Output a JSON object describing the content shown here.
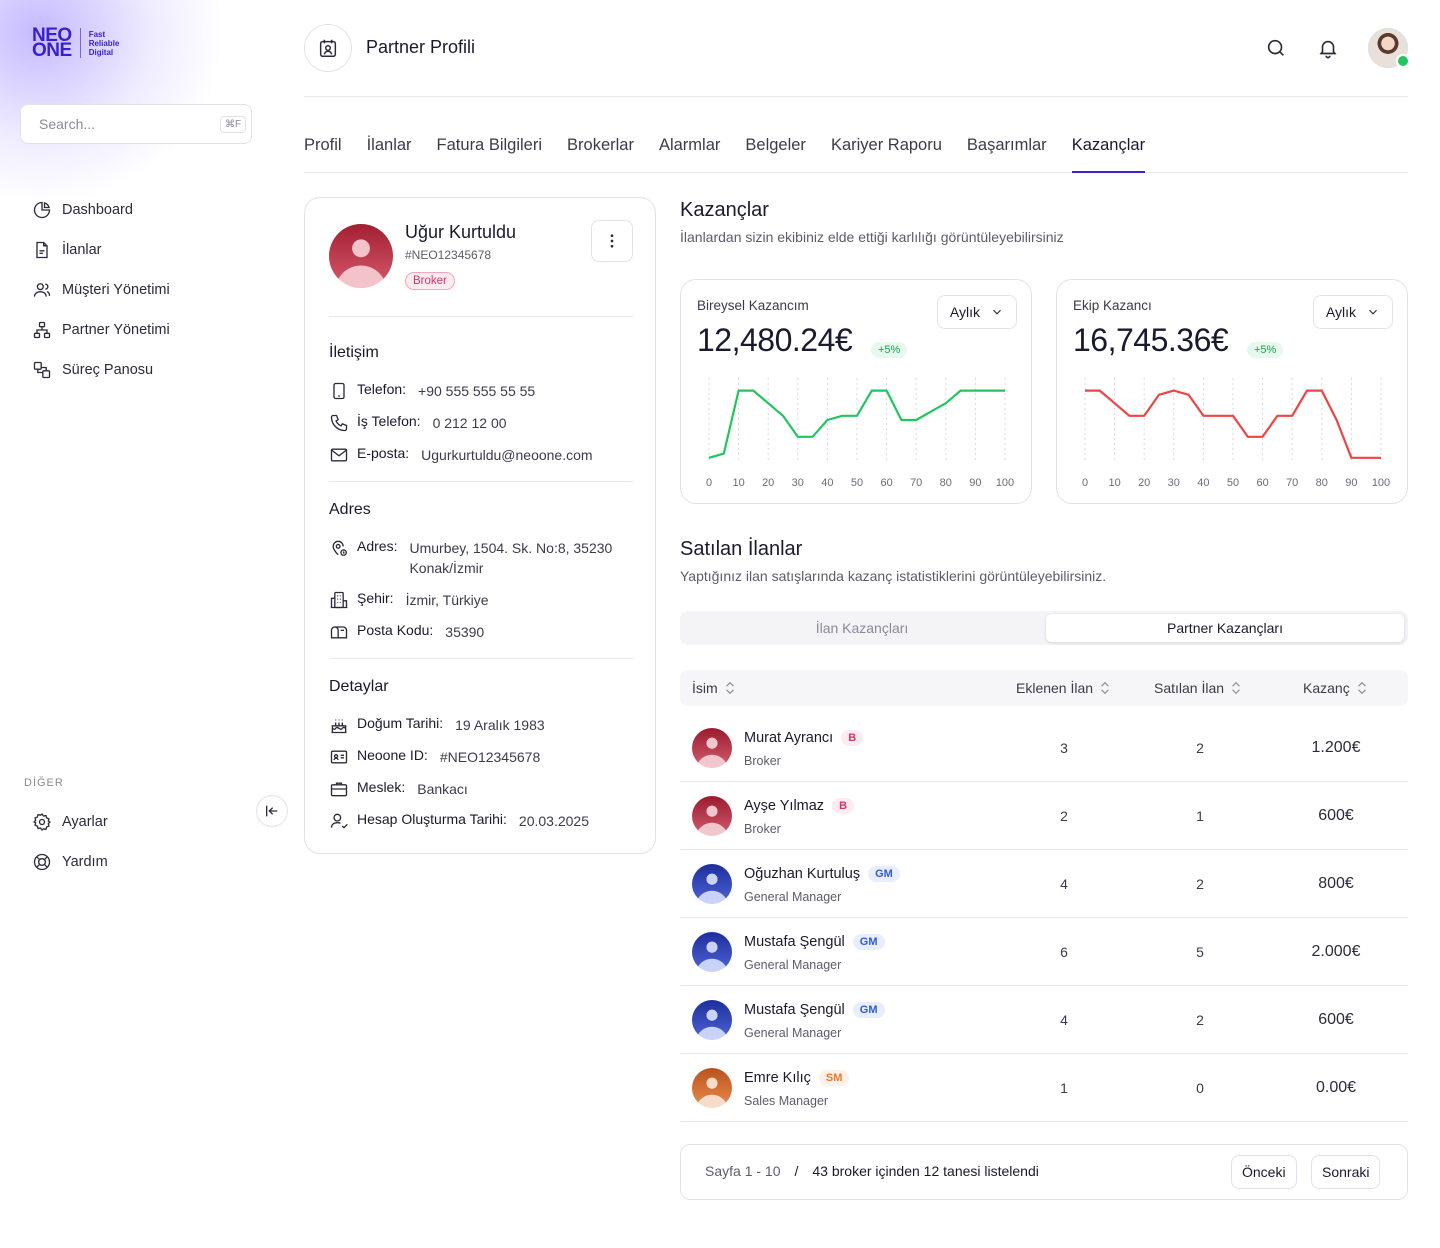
{
  "brand": {
    "logo_main_1": "NEO",
    "logo_main_2": "ONE",
    "tagline_1": "Fast",
    "tagline_2": "Reliable",
    "tagline_3": "Digital",
    "accent": "#3a1fd1"
  },
  "search": {
    "placeholder": "Search...",
    "shortcut": "⌘F"
  },
  "sidebar": {
    "items": [
      {
        "label": "Dashboard",
        "icon": "pie-chart-icon"
      },
      {
        "label": "İlanlar",
        "icon": "document-icon"
      },
      {
        "label": "Müşteri Yönetimi",
        "icon": "users-icon"
      },
      {
        "label": "Partner Yönetimi",
        "icon": "hierarchy-icon"
      },
      {
        "label": "Süreç Panosu",
        "icon": "process-icon"
      }
    ],
    "other_label": "DİĞER",
    "other_items": [
      {
        "label": "Ayarlar",
        "icon": "gear-icon"
      },
      {
        "label": "Yardım",
        "icon": "lifebuoy-icon"
      }
    ]
  },
  "header": {
    "title": "Partner Profili"
  },
  "tabs": [
    {
      "label": "Profil"
    },
    {
      "label": "İlanlar"
    },
    {
      "label": "Fatura Bilgileri"
    },
    {
      "label": "Brokerlar"
    },
    {
      "label": "Alarmlar"
    },
    {
      "label": "Belgeler"
    },
    {
      "label": "Kariyer Raporu"
    },
    {
      "label": "Başarımlar"
    },
    {
      "label": "Kazançlar",
      "active": true
    }
  ],
  "profile": {
    "name": "Uğur Kurtuldu",
    "id": "#NEO12345678",
    "badge": "Broker",
    "contact_title": "İletişim",
    "phone_label": "Telefon:",
    "phone": "+90 555 555 55 55",
    "work_phone_label": "İş Telefon:",
    "work_phone": "0 212 12 00",
    "email_label": "E-posta:",
    "email": "Ugurkurtuldu@neoone.com",
    "address_title": "Adres",
    "address_label": "Adres:",
    "address_line1": "Umurbey, 1504. Sk. No:8, 35230",
    "address_line2": "Konak/İzmir",
    "city_label": "Şehir:",
    "city": "İzmir, Türkiye",
    "postal_label": "Posta Kodu:",
    "postal": "35390",
    "details_title": "Detaylar",
    "birth_label": "Doğum Tarihi:",
    "birth": "19 Aralık 1983",
    "neoone_label": "Neoone ID:",
    "neoone_id": "#NEO12345678",
    "job_label": "Meslek:",
    "job": "Bankacı",
    "created_label": "Hesap Oluşturma Tarihi:",
    "created": "20.03.2025"
  },
  "earnings": {
    "title": "Kazançlar",
    "subtitle": "İlanlardan sizin ekibiniz elde ettiği karlılığı görüntüleyebilirsiniz",
    "cards": [
      {
        "label": "Bireysel Kazancım",
        "value": "12,480.24€",
        "delta": "+5%",
        "period": "Aylık",
        "color": "#22c55e"
      },
      {
        "label": "Ekip Kazancı",
        "value": "16,745.36€",
        "delta": "+5%",
        "period": "Aylık",
        "color": "#ef4444"
      }
    ]
  },
  "chart_data": [
    {
      "type": "line",
      "x": [
        0,
        5,
        10,
        15,
        20,
        25,
        30,
        35,
        40,
        45,
        50,
        55,
        60,
        65,
        70,
        75,
        80,
        85,
        90,
        95,
        100
      ],
      "values": [
        0.05,
        0.1,
        0.85,
        0.85,
        0.7,
        0.55,
        0.3,
        0.3,
        0.5,
        0.55,
        0.55,
        0.85,
        0.85,
        0.5,
        0.5,
        0.6,
        0.7,
        0.85,
        0.85,
        0.85,
        0.85
      ],
      "x_ticks": [
        0,
        10,
        20,
        30,
        40,
        50,
        60,
        70,
        80,
        90,
        100
      ],
      "color": "#22c55e"
    },
    {
      "type": "line",
      "x": [
        0,
        5,
        10,
        15,
        20,
        25,
        30,
        35,
        40,
        45,
        50,
        55,
        60,
        65,
        70,
        75,
        80,
        85,
        90,
        95,
        100
      ],
      "values": [
        0.85,
        0.85,
        0.7,
        0.55,
        0.55,
        0.8,
        0.85,
        0.8,
        0.55,
        0.55,
        0.55,
        0.3,
        0.3,
        0.55,
        0.55,
        0.85,
        0.85,
        0.5,
        0.05,
        0.05,
        0.05
      ],
      "x_ticks": [
        0,
        10,
        20,
        30,
        40,
        50,
        60,
        70,
        80,
        90,
        100
      ],
      "color": "#ef4444"
    }
  ],
  "sold": {
    "title": "Satılan İlanlar",
    "subtitle": "Yaptığınız ilan satışlarında kazanç istatistiklerini görüntüleyebilirsiniz.",
    "seg_off": "İlan Kazançları",
    "seg_on": "Partner Kazançları",
    "columns": {
      "name": "İsim",
      "added": "Eklenen İlan",
      "sold": "Satılan İlan",
      "earning": "Kazanç"
    },
    "rows": [
      {
        "name": "Murat Ayrancı",
        "badge": "B",
        "role": "Broker",
        "added": "3",
        "sold": "2",
        "earning": "1.200€",
        "avatar": "red"
      },
      {
        "name": "Ayşe Yılmaz",
        "badge": "B",
        "role": "Broker",
        "added": "2",
        "sold": "1",
        "earning": "600€",
        "avatar": "red"
      },
      {
        "name": "Oğuzhan Kurtuluş",
        "badge": "GM",
        "role": "General Manager",
        "added": "4",
        "sold": "2",
        "earning": "800€",
        "avatar": "blue"
      },
      {
        "name": "Mustafa Şengül",
        "badge": "GM",
        "role": "General Manager",
        "added": "6",
        "sold": "5",
        "earning": "2.000€",
        "avatar": "blue"
      },
      {
        "name": "Mustafa Şengül",
        "badge": "GM",
        "role": "General Manager",
        "added": "4",
        "sold": "2",
        "earning": "600€",
        "avatar": "blue"
      },
      {
        "name": "Emre Kılıç",
        "badge": "SM",
        "role": "Sales Manager",
        "added": "1",
        "sold": "0",
        "earning": "0.00€",
        "avatar": "orange"
      }
    ]
  },
  "pager": {
    "range": "Sayfa 1 - 10",
    "sep": "/",
    "summary": "43 broker içinden 12 tanesi listelendi",
    "prev": "Önceki",
    "next": "Sonraki"
  }
}
